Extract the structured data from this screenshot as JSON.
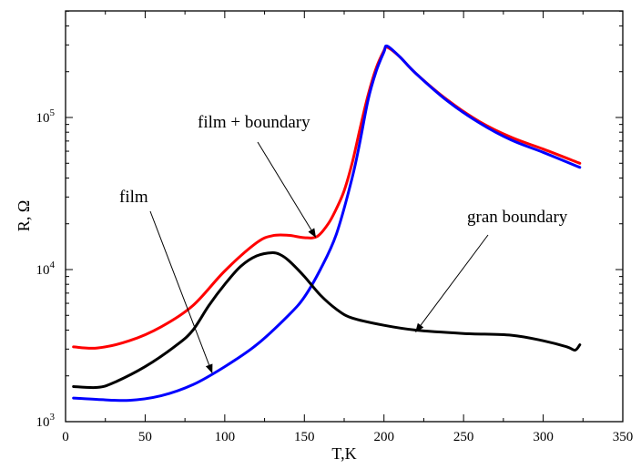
{
  "chart_data": {
    "type": "line",
    "xlabel": "T,K",
    "ylabel": "R, Ω",
    "xlim": [
      0,
      350
    ],
    "ylim": [
      1000,
      500000
    ],
    "y_scale": "log",
    "grid": false,
    "x_ticks": [
      {
        "value": 0,
        "label": "0"
      },
      {
        "value": 50,
        "label": "50"
      },
      {
        "value": 100,
        "label": "100"
      },
      {
        "value": 150,
        "label": "150"
      },
      {
        "value": 200,
        "label": "200"
      },
      {
        "value": 250,
        "label": "250"
      },
      {
        "value": 300,
        "label": "300"
      },
      {
        "value": 350,
        "label": "350"
      }
    ],
    "y_ticks": [
      {
        "value": 1000,
        "base": "10",
        "exp": "3"
      },
      {
        "value": 10000,
        "base": "10",
        "exp": "4"
      },
      {
        "value": 100000,
        "base": "10",
        "exp": "5"
      }
    ],
    "series": [
      {
        "color": "#ff0000",
        "x": [
          5,
          20,
          40,
          60,
          80,
          100,
          120,
          130,
          140,
          150,
          158,
          165,
          170,
          175,
          180,
          185,
          190,
          195,
          200,
          202,
          210,
          220,
          240,
          260,
          280,
          300,
          323
        ],
        "y": [
          3100,
          3050,
          3400,
          4200,
          5800,
          9800,
          15000,
          16700,
          16800,
          16200,
          16500,
          20000,
          25000,
          33000,
          50000,
          85000,
          140000,
          210000,
          275000,
          290000,
          250000,
          195000,
          130000,
          94000,
          74000,
          62000,
          50000
        ]
      },
      {
        "color": "#0000ff",
        "x": [
          5,
          20,
          40,
          60,
          80,
          100,
          120,
          140,
          150,
          160,
          170,
          180,
          185,
          190,
          195,
          200,
          202,
          210,
          220,
          240,
          260,
          280,
          300,
          323
        ],
        "y": [
          1430,
          1400,
          1380,
          1480,
          1750,
          2300,
          3200,
          5000,
          6600,
          10000,
          17000,
          40000,
          70000,
          130000,
          200000,
          270000,
          295000,
          250000,
          195000,
          128000,
          92000,
          71000,
          59000,
          47000
        ]
      },
      {
        "color": "#000000",
        "x": [
          5,
          20,
          30,
          50,
          70,
          80,
          90,
          100,
          110,
          120,
          130,
          135,
          140,
          150,
          160,
          170,
          180,
          200,
          220,
          250,
          280,
          300,
          315,
          320,
          323
        ],
        "y": [
          1700,
          1680,
          1800,
          2300,
          3200,
          4000,
          5800,
          8000,
          10500,
          12300,
          12900,
          12500,
          11500,
          9000,
          6800,
          5500,
          4800,
          4300,
          4000,
          3800,
          3700,
          3400,
          3100,
          2950,
          3200
        ]
      }
    ],
    "annotations": [
      {
        "text": "film + boundary",
        "pointer_x": 157,
        "pointer_y": 16400
      },
      {
        "text": "film",
        "pointer_x": 92,
        "pointer_y": 2100
      },
      {
        "text": "gran boundary",
        "pointer_x": 220,
        "pointer_y": 3900
      }
    ]
  }
}
